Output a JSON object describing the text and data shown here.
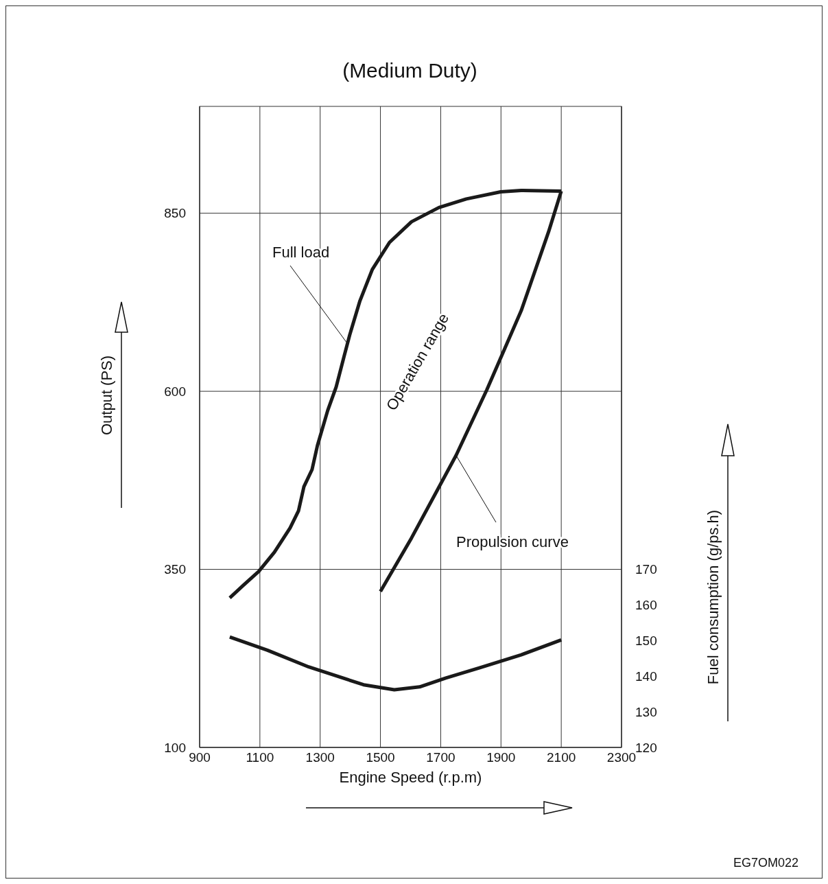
{
  "chart_data": {
    "type": "line",
    "title": "(Medium Duty)",
    "xlabel": "Engine Speed (r.p.m)",
    "ylabel": "Output (PS)",
    "y2label": "Fuel consumption (g/ps.h)",
    "xlim": [
      900,
      2300
    ],
    "xticks": [
      900,
      1100,
      1300,
      1500,
      1700,
      1900,
      2100,
      2300
    ],
    "ylim": [
      100,
      1000
    ],
    "yticks": [
      100,
      350,
      600,
      850
    ],
    "y2lim": [
      120,
      300
    ],
    "y2ticks": [
      120,
      130,
      140,
      150,
      160,
      170
    ],
    "grid": true,
    "legend": false,
    "marker": "none",
    "line_style": "solid",
    "series": [
      {
        "color": "#1a1a1a",
        "x": [
          1000,
          1046,
          1096,
          1148,
          1200,
          1228,
          1246,
          1273,
          1291,
          1325,
          1353,
          1380,
          1398,
          1432,
          1473,
          1530,
          1603,
          1694,
          1785,
          1899,
          1967,
          2100
        ],
        "values": [
          310,
          328,
          347,
          374,
          408,
          432,
          466,
          490,
          524,
          573,
          606,
          650,
          679,
          727,
          771,
          809,
          838,
          858,
          870,
          880,
          882,
          881
        ]
      },
      {
        "color": "#1a1a1a",
        "x": [
          1500,
          1603,
          1751,
          1853,
          1967,
          2058,
          2100
        ],
        "values": [
          319,
          394,
          510,
          602,
          713,
          824,
          881
        ]
      },
      {
        "color": "#1a1a1a",
        "axis": "y2",
        "x": [
          1000,
          1125,
          1262,
          1444,
          1546,
          1630,
          1717,
          1830,
          1967,
          2100
        ],
        "values": [
          151,
          147.3,
          142.6,
          137.6,
          136.2,
          137,
          139.5,
          142.4,
          146,
          150.2
        ]
      }
    ],
    "annotations": [
      {
        "text": "Full load",
        "x": 1387,
        "y": 669
      },
      "Operation  range",
      {
        "text": "Propulsion curve",
        "x": 1751,
        "y": 510
      },
      "EG7OM022"
    ]
  }
}
